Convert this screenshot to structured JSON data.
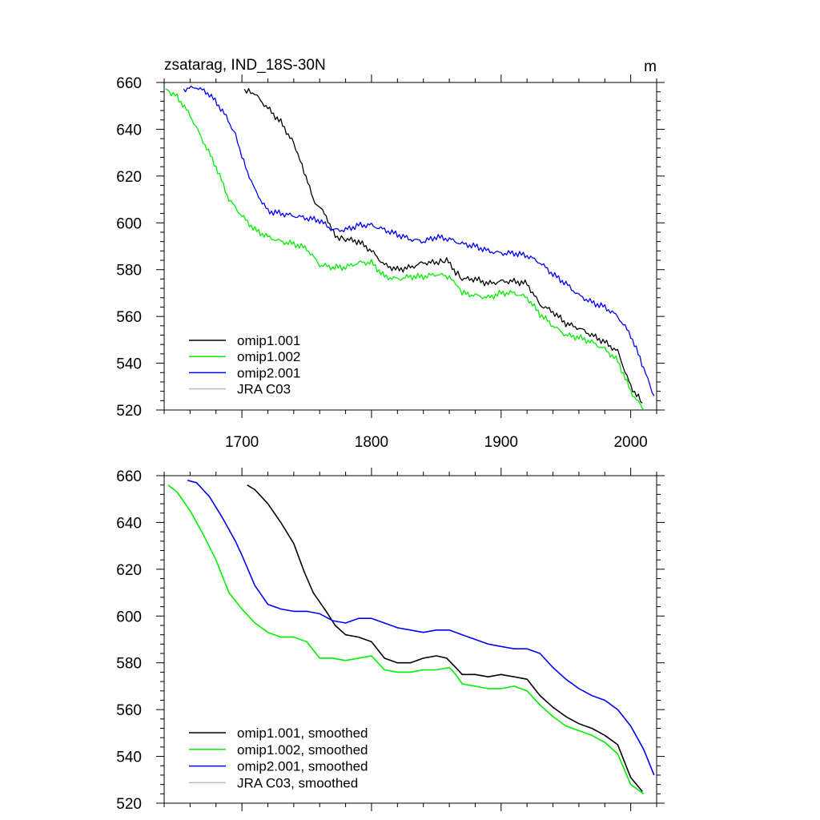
{
  "chart_data": [
    {
      "type": "line",
      "title": "zsatarag, IND_18S-30N",
      "units": "m",
      "xlim": [
        1640,
        2020
      ],
      "ylim": [
        520,
        660
      ],
      "xticks": [
        1700,
        1800,
        1900,
        2000
      ],
      "xtick_labels": [
        "1700",
        "1800",
        "1900",
        "2000"
      ],
      "yticks": [
        520,
        540,
        560,
        580,
        600,
        620,
        640,
        660
      ],
      "ytick_labels": [
        "520",
        "540",
        "560",
        "580",
        "600",
        "620",
        "640",
        "660"
      ],
      "legend_position": "bottom-left",
      "series": [
        {
          "name": "omip1.001",
          "color": "#000000",
          "x": [
            1702,
            1710,
            1720,
            1730,
            1740,
            1748,
            1755,
            1765,
            1772,
            1780,
            1790,
            1800,
            1810,
            1820,
            1830,
            1840,
            1850,
            1858,
            1865,
            1870,
            1880,
            1890,
            1900,
            1910,
            1920,
            1930,
            1940,
            1950,
            1960,
            1970,
            1980,
            1990,
            2000,
            2009
          ],
          "y": [
            657,
            655,
            649,
            643,
            634,
            622,
            610,
            603,
            594,
            593,
            592,
            588,
            582,
            580,
            581,
            583,
            583,
            584,
            579,
            576,
            576,
            574,
            575,
            575,
            574,
            565,
            562,
            557,
            555,
            552,
            549,
            545,
            530,
            523
          ]
        },
        {
          "name": "omip1.002",
          "color": "#00ee00",
          "x": [
            1641,
            1650,
            1660,
            1670,
            1680,
            1690,
            1700,
            1710,
            1720,
            1730,
            1740,
            1750,
            1760,
            1770,
            1780,
            1790,
            1800,
            1810,
            1820,
            1830,
            1840,
            1850,
            1860,
            1865,
            1870,
            1880,
            1890,
            1900,
            1910,
            1920,
            1930,
            1940,
            1950,
            1960,
            1970,
            1980,
            1990,
            2000,
            2010
          ],
          "y": [
            657,
            654,
            646,
            635,
            624,
            610,
            603,
            597,
            594,
            592,
            591,
            589,
            582,
            581,
            581,
            583,
            583,
            577,
            576,
            577,
            577,
            578,
            577,
            574,
            570,
            569,
            568,
            570,
            570,
            568,
            561,
            556,
            552,
            551,
            549,
            546,
            541,
            528,
            520
          ]
        },
        {
          "name": "omip2.001",
          "color": "#0000ff",
          "x": [
            1655,
            1665,
            1675,
            1685,
            1695,
            1700,
            1710,
            1720,
            1730,
            1740,
            1750,
            1760,
            1770,
            1780,
            1790,
            1800,
            1810,
            1820,
            1830,
            1840,
            1850,
            1860,
            1870,
            1880,
            1890,
            1900,
            1910,
            1920,
            1930,
            1940,
            1950,
            1960,
            1970,
            1980,
            1990,
            2000,
            2010,
            2018
          ],
          "y": [
            657,
            658,
            655,
            648,
            638,
            628,
            614,
            605,
            604,
            603,
            602,
            601,
            597,
            597,
            599,
            599,
            597,
            595,
            593,
            592,
            594,
            593,
            591,
            590,
            588,
            587,
            587,
            586,
            583,
            578,
            574,
            569,
            566,
            564,
            560,
            552,
            538,
            526
          ]
        },
        {
          "name": "JRA C03",
          "color": "#bbbbbb",
          "x": [],
          "y": []
        }
      ]
    },
    {
      "type": "line",
      "title": "",
      "units": "",
      "xlim": [
        1640,
        2020
      ],
      "ylim": [
        520,
        660
      ],
      "xticks": [
        1700,
        1800,
        1900,
        2000
      ],
      "xtick_labels": [],
      "yticks": [
        520,
        540,
        560,
        580,
        600,
        620,
        640,
        660
      ],
      "ytick_labels": [
        "520",
        "540",
        "560",
        "580",
        "600",
        "620",
        "640",
        "660"
      ],
      "legend_position": "bottom-left",
      "series": [
        {
          "name": "omip1.001, smoothed",
          "color": "#000000",
          "x": [
            1704,
            1710,
            1720,
            1730,
            1740,
            1748,
            1755,
            1765,
            1772,
            1780,
            1790,
            1800,
            1810,
            1820,
            1830,
            1840,
            1850,
            1858,
            1865,
            1870,
            1880,
            1890,
            1900,
            1910,
            1920,
            1930,
            1940,
            1950,
            1960,
            1970,
            1980,
            1990,
            2000,
            2009
          ],
          "y": [
            656,
            654,
            648,
            640,
            631,
            619,
            610,
            602,
            596,
            592,
            591,
            589,
            582,
            580,
            580,
            582,
            583,
            582,
            578,
            575,
            575,
            574,
            575,
            574,
            573,
            566,
            561,
            557,
            554,
            552,
            549,
            545,
            531,
            525
          ]
        },
        {
          "name": "omip1.002, smoothed",
          "color": "#00ee00",
          "x": [
            1643,
            1650,
            1660,
            1670,
            1680,
            1690,
            1700,
            1710,
            1720,
            1730,
            1740,
            1750,
            1760,
            1770,
            1780,
            1790,
            1800,
            1810,
            1820,
            1830,
            1840,
            1850,
            1860,
            1865,
            1870,
            1880,
            1890,
            1900,
            1910,
            1920,
            1930,
            1940,
            1950,
            1960,
            1970,
            1980,
            1990,
            2000,
            2010
          ],
          "y": [
            656,
            653,
            645,
            635,
            624,
            610,
            603,
            597,
            593,
            591,
            591,
            589,
            582,
            582,
            581,
            582,
            583,
            577,
            576,
            576,
            577,
            577,
            578,
            575,
            571,
            570,
            569,
            569,
            570,
            568,
            562,
            557,
            553,
            551,
            549,
            546,
            541,
            528,
            524
          ]
        },
        {
          "name": "omip2.001, smoothed",
          "color": "#0000ff",
          "x": [
            1658,
            1665,
            1675,
            1685,
            1695,
            1700,
            1710,
            1720,
            1730,
            1740,
            1750,
            1760,
            1770,
            1780,
            1790,
            1800,
            1810,
            1820,
            1830,
            1840,
            1850,
            1860,
            1870,
            1880,
            1890,
            1900,
            1910,
            1920,
            1930,
            1940,
            1950,
            1960,
            1970,
            1980,
            1990,
            2000,
            2010,
            2018
          ],
          "y": [
            658,
            657,
            651,
            642,
            632,
            626,
            613,
            605,
            603,
            602,
            602,
            601,
            598,
            597,
            599,
            599,
            597,
            595,
            594,
            593,
            594,
            594,
            592,
            590,
            588,
            587,
            586,
            586,
            584,
            578,
            573,
            569,
            566,
            564,
            560,
            553,
            543,
            532
          ]
        },
        {
          "name": "JRA C03, smoothed",
          "color": "#bbbbbb",
          "x": [],
          "y": []
        }
      ]
    }
  ]
}
